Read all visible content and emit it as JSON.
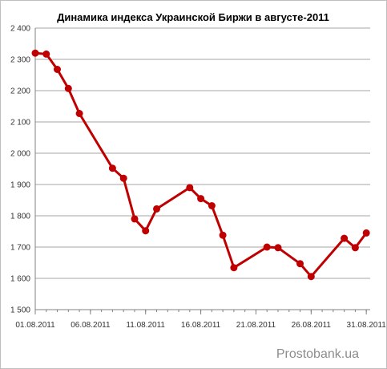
{
  "chart_data": {
    "type": "line",
    "title": "Динамика индекса Украинской Биржи в августе-2011",
    "xlabel": "",
    "ylabel": "",
    "ylim": [
      1500,
      2400
    ],
    "yticks": [
      1500,
      1600,
      1700,
      1800,
      1900,
      2000,
      2100,
      2200,
      2300,
      2400
    ],
    "ytick_labels": [
      "1 500",
      "1 600",
      "1 700",
      "1 800",
      "1 900",
      "2 000",
      "2 100",
      "2 200",
      "2 300",
      "2 400"
    ],
    "xlim": [
      "2011-08-01",
      "2011-08-31"
    ],
    "xticks": [
      "2011-08-01",
      "2011-08-06",
      "2011-08-11",
      "2011-08-16",
      "2011-08-21",
      "2011-08-26",
      "2011-08-31"
    ],
    "xtick_labels": [
      "01.08.2011",
      "06.08.2011",
      "11.08.2011",
      "16.08.2011",
      "21.08.2011",
      "26.08.2011",
      "31.08.2011"
    ],
    "grid": {
      "horizontal": true,
      "vertical": false
    },
    "legend": "none",
    "series": [
      {
        "color": "#c00000",
        "x": [
          "2011-08-01",
          "2011-08-02",
          "2011-08-03",
          "2011-08-04",
          "2011-08-05",
          "2011-08-08",
          "2011-08-09",
          "2011-08-10",
          "2011-08-11",
          "2011-08-12",
          "2011-08-15",
          "2011-08-16",
          "2011-08-17",
          "2011-08-18",
          "2011-08-19",
          "2011-08-22",
          "2011-08-23",
          "2011-08-25",
          "2011-08-26",
          "2011-08-29",
          "2011-08-30",
          "2011-08-31"
        ],
        "values": [
          2320,
          2317,
          2268,
          2207,
          2127,
          1952,
          1920,
          1790,
          1752,
          1822,
          1890,
          1855,
          1832,
          1738,
          1634,
          1700,
          1698,
          1647,
          1606,
          1728,
          1698,
          1745
        ]
      }
    ]
  },
  "watermark": "Prostobank.ua"
}
